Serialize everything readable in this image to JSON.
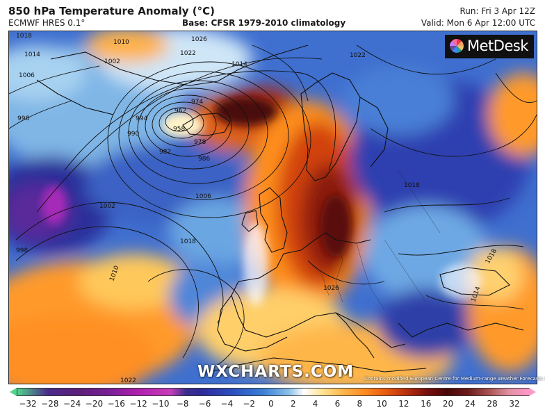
{
  "header": {
    "title": "850 hPa Temperature Anomaly (°C)",
    "model": "ECMWF HRES 0.1°",
    "base": "Base: CFSR 1979-2010 climatology",
    "run": "Run: Fri 3 Apr 12Z",
    "valid": "Valid: Mon 6 Apr 12:00 UTC"
  },
  "branding": {
    "logo": "MetDesk",
    "watermark": "WXCHARTS.COM",
    "credit": "Contains modified European Centre for Medium-range Weather Forecasts (ECMWF)"
  },
  "isobar_labels": [
    "1018",
    "1014",
    "1026",
    "1010",
    "1022",
    "1002",
    "1006",
    "998",
    "994",
    "990",
    "986",
    "982",
    "978",
    "974",
    "962",
    "958",
    "1014",
    "1018",
    "1022",
    "1010",
    "1002",
    "998",
    "1006",
    "1018",
    "1026",
    "1014",
    "1018",
    "1022"
  ],
  "legend": {
    "ticks": [
      "−32",
      "−28",
      "−24",
      "−20",
      "−16",
      "−12",
      "−10",
      "−8",
      "−6",
      "−4",
      "−2",
      "0",
      "2",
      "4",
      "6",
      "8",
      "10",
      "12",
      "16",
      "20",
      "24",
      "28",
      "32"
    ]
  },
  "colors": {
    "warm_core": "#5a0a0a",
    "cold_core": "#8a1fb0",
    "neutral": "#ffffff"
  }
}
